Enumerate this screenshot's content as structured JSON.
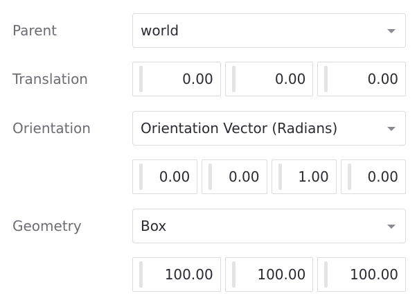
{
  "parent": {
    "label": "Parent",
    "value": "world"
  },
  "translation": {
    "label": "Translation",
    "values": [
      "0.00",
      "0.00",
      "0.00"
    ]
  },
  "orientation": {
    "label": "Orientation",
    "mode": "Orientation Vector (Radians)",
    "values": [
      "0.00",
      "0.00",
      "1.00",
      "0.00"
    ]
  },
  "geometry": {
    "label": "Geometry",
    "type": "Box",
    "values": [
      "100.00",
      "100.00",
      "100.00"
    ]
  }
}
